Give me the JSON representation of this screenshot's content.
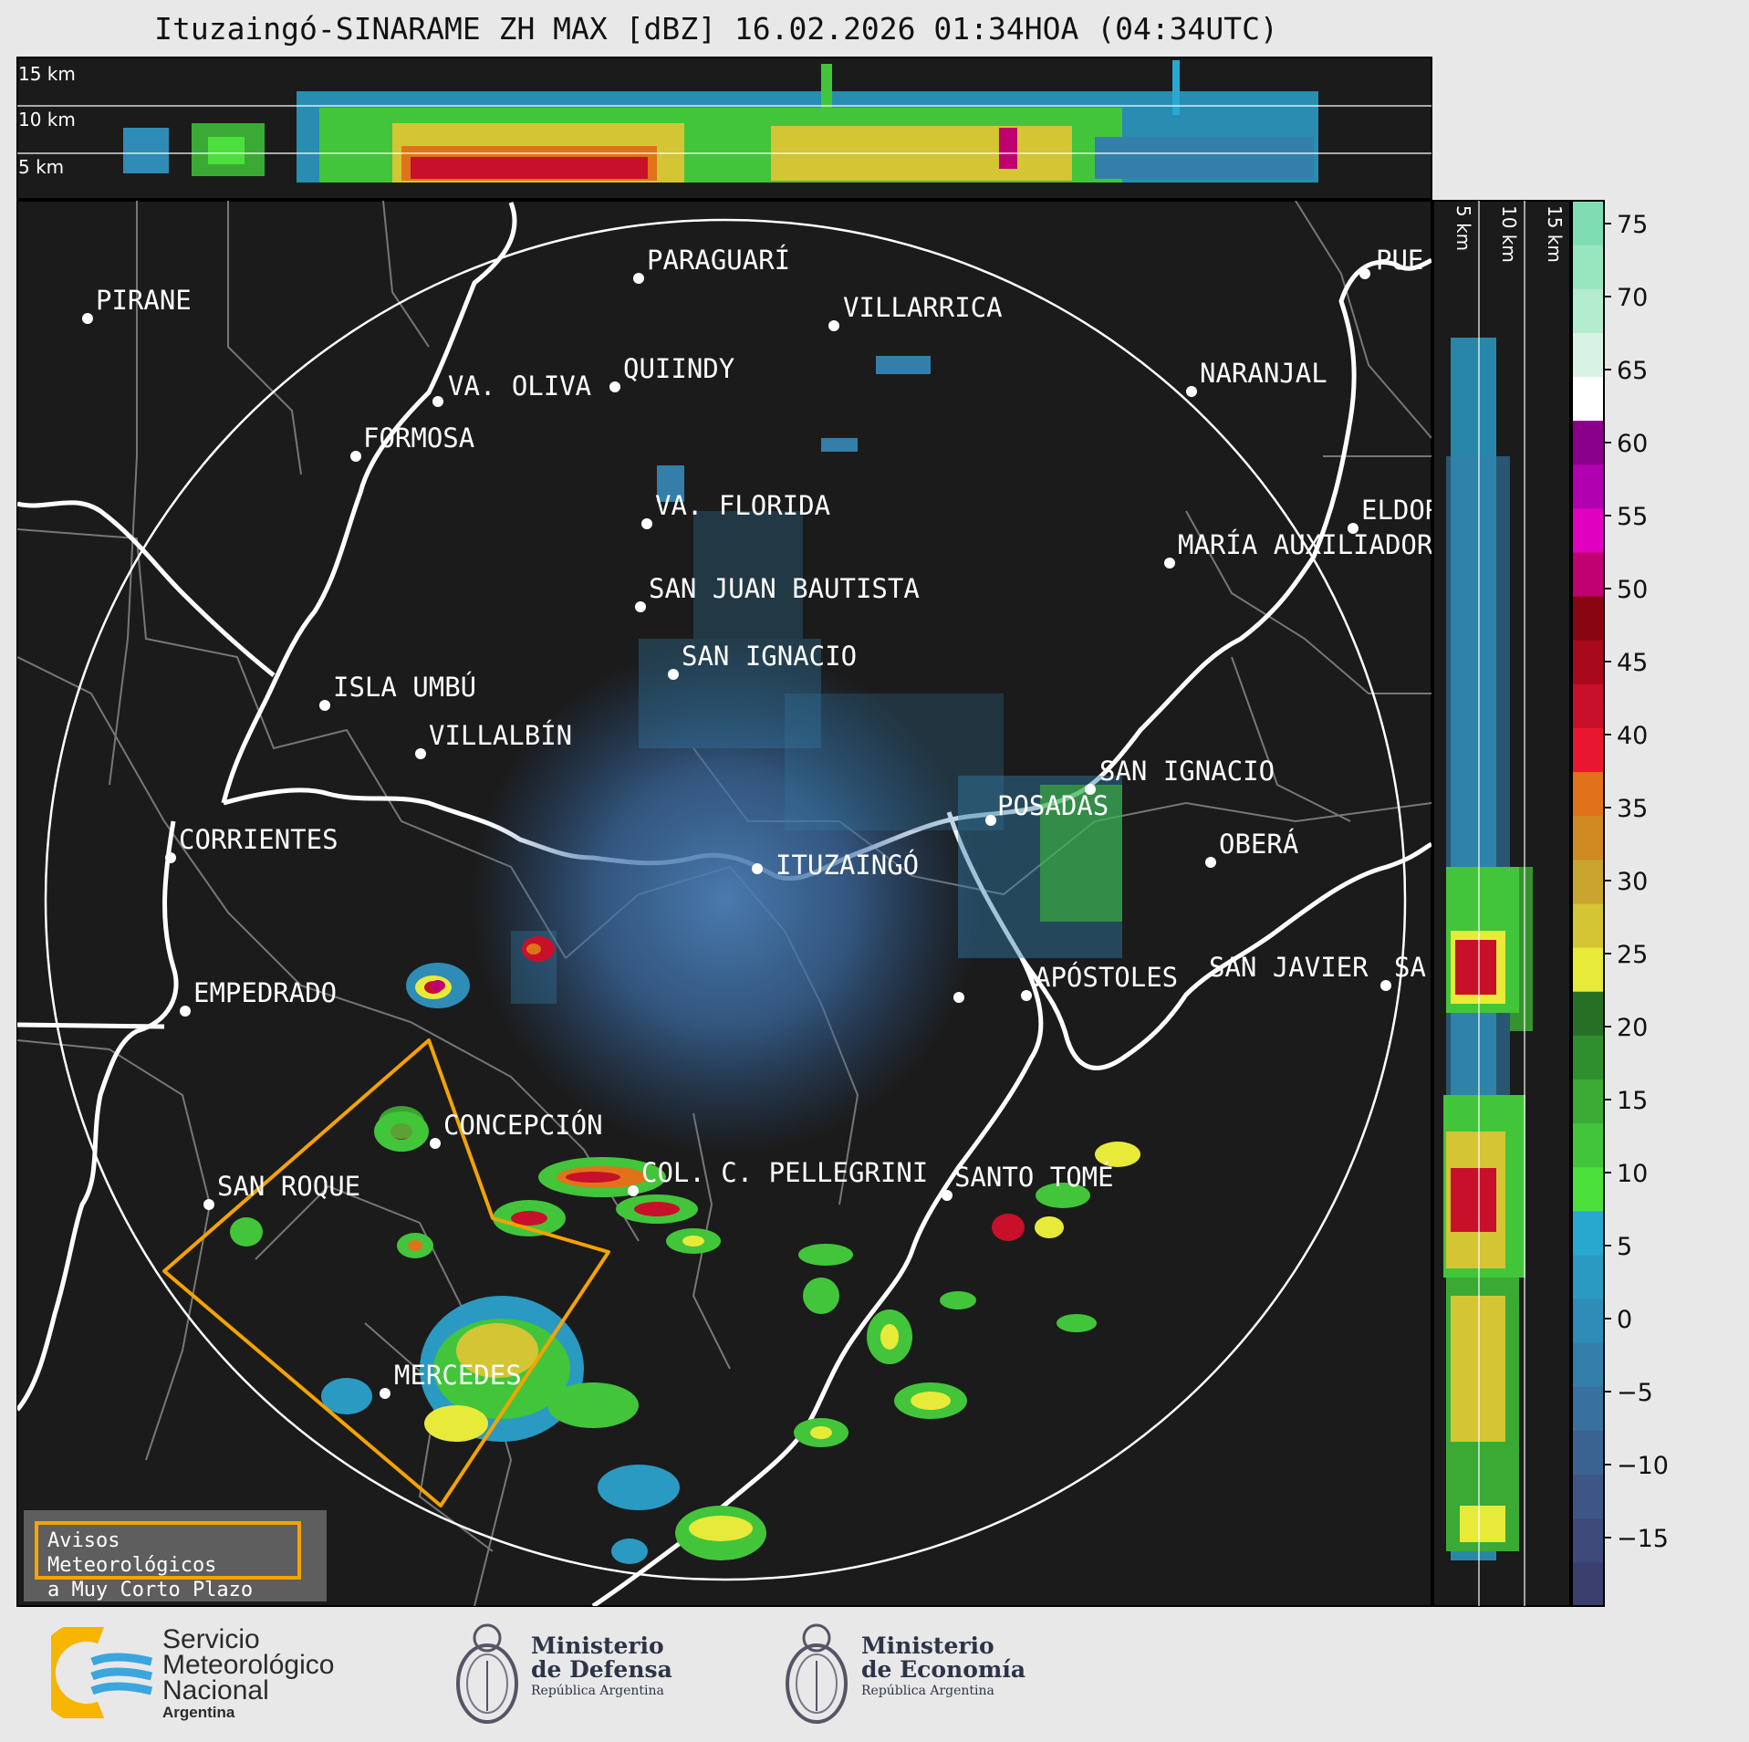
{
  "title": "Ituzaingó-SINARAME ZH MAX [dBZ] 16.02.2026 01:34HOA (04:34UTC)",
  "top_panel": {
    "labels": [
      "15 km",
      "10 km",
      "5 km"
    ]
  },
  "side_panel": {
    "labels": [
      "5 km",
      "10 km",
      "15 km"
    ]
  },
  "colorbar": {
    "ticks": [
      "75",
      "70",
      "65",
      "60",
      "55",
      "50",
      "45",
      "40",
      "35",
      "30",
      "25",
      "20",
      "15",
      "10",
      "5",
      "0",
      "−5",
      "−10",
      "−15"
    ],
    "colors": [
      "#3b3f6e",
      "#3d4a7a",
      "#3d5686",
      "#3a6392",
      "#38709e",
      "#347eaa",
      "#2e8cb6",
      "#2a9ac2",
      "#29a8cf",
      "#4be03c",
      "#42c53a",
      "#3aaa35",
      "#2f8f2e",
      "#276f24",
      "#e8ea3a",
      "#d3c534",
      "#c7a52e",
      "#d08a22",
      "#e0731a",
      "#e8172f",
      "#c8102a",
      "#a80a1c",
      "#8a0512",
      "#c00070",
      "#e000c0",
      "#b000b0",
      "#8a008a",
      "#ffffff",
      "#d8f2e4",
      "#b4eccf",
      "#98e6c0",
      "#80dcb2"
    ]
  },
  "cities": [
    {
      "name": "PIRANE"
    },
    {
      "name": "PARAGUARÍ"
    },
    {
      "name": "VILLARRICA"
    },
    {
      "name": "QUIINDY"
    },
    {
      "name": "VA. OLIVA"
    },
    {
      "name": "NARANJAL"
    },
    {
      "name": "FORMOSA"
    },
    {
      "name": "VA. FLORIDA"
    },
    {
      "name": "ELDOR"
    },
    {
      "name": "MARÍA AUXILIADOR"
    },
    {
      "name": "SAN JUAN BAUTISTA"
    },
    {
      "name": "SAN IGNACIO"
    },
    {
      "name": "ISLA UMBÚ"
    },
    {
      "name": "VILLALBÍN"
    },
    {
      "name": "SAN IGNACIO"
    },
    {
      "name": "POSADAS"
    },
    {
      "name": "CORRIENTES"
    },
    {
      "name": "ITUZAINGÓ"
    },
    {
      "name": "OBERÁ"
    },
    {
      "name": "EMPEDRADO"
    },
    {
      "name": "APÓSTOLES"
    },
    {
      "name": "SAN JAVIER"
    },
    {
      "name": "SA"
    },
    {
      "name": "CONCEPCIÓN"
    },
    {
      "name": "COL. C. PELLEGRINI"
    },
    {
      "name": "SANTO TOMÉ"
    },
    {
      "name": "SAN ROQUE"
    },
    {
      "name": "MERCEDES"
    },
    {
      "name": "PUE"
    }
  ],
  "warning_box": {
    "line1": "Avisos Meteorológicos",
    "line2": "a Muy Corto Plazo"
  },
  "footer": {
    "smn": {
      "line1": "Servicio",
      "line2": "Meteorológico",
      "line3": "Nacional",
      "line4": "Argentina"
    },
    "defensa": {
      "line1": "Ministerio",
      "line2": "de Defensa",
      "line3": "República Argentina"
    },
    "economia": {
      "line1": "Ministerio",
      "line2": "de Economía",
      "line3": "República Argentina"
    }
  },
  "colors": {
    "background": "#1b1b1b",
    "warning_polygon": "#f5a300",
    "range_ring": "#ffffff"
  }
}
